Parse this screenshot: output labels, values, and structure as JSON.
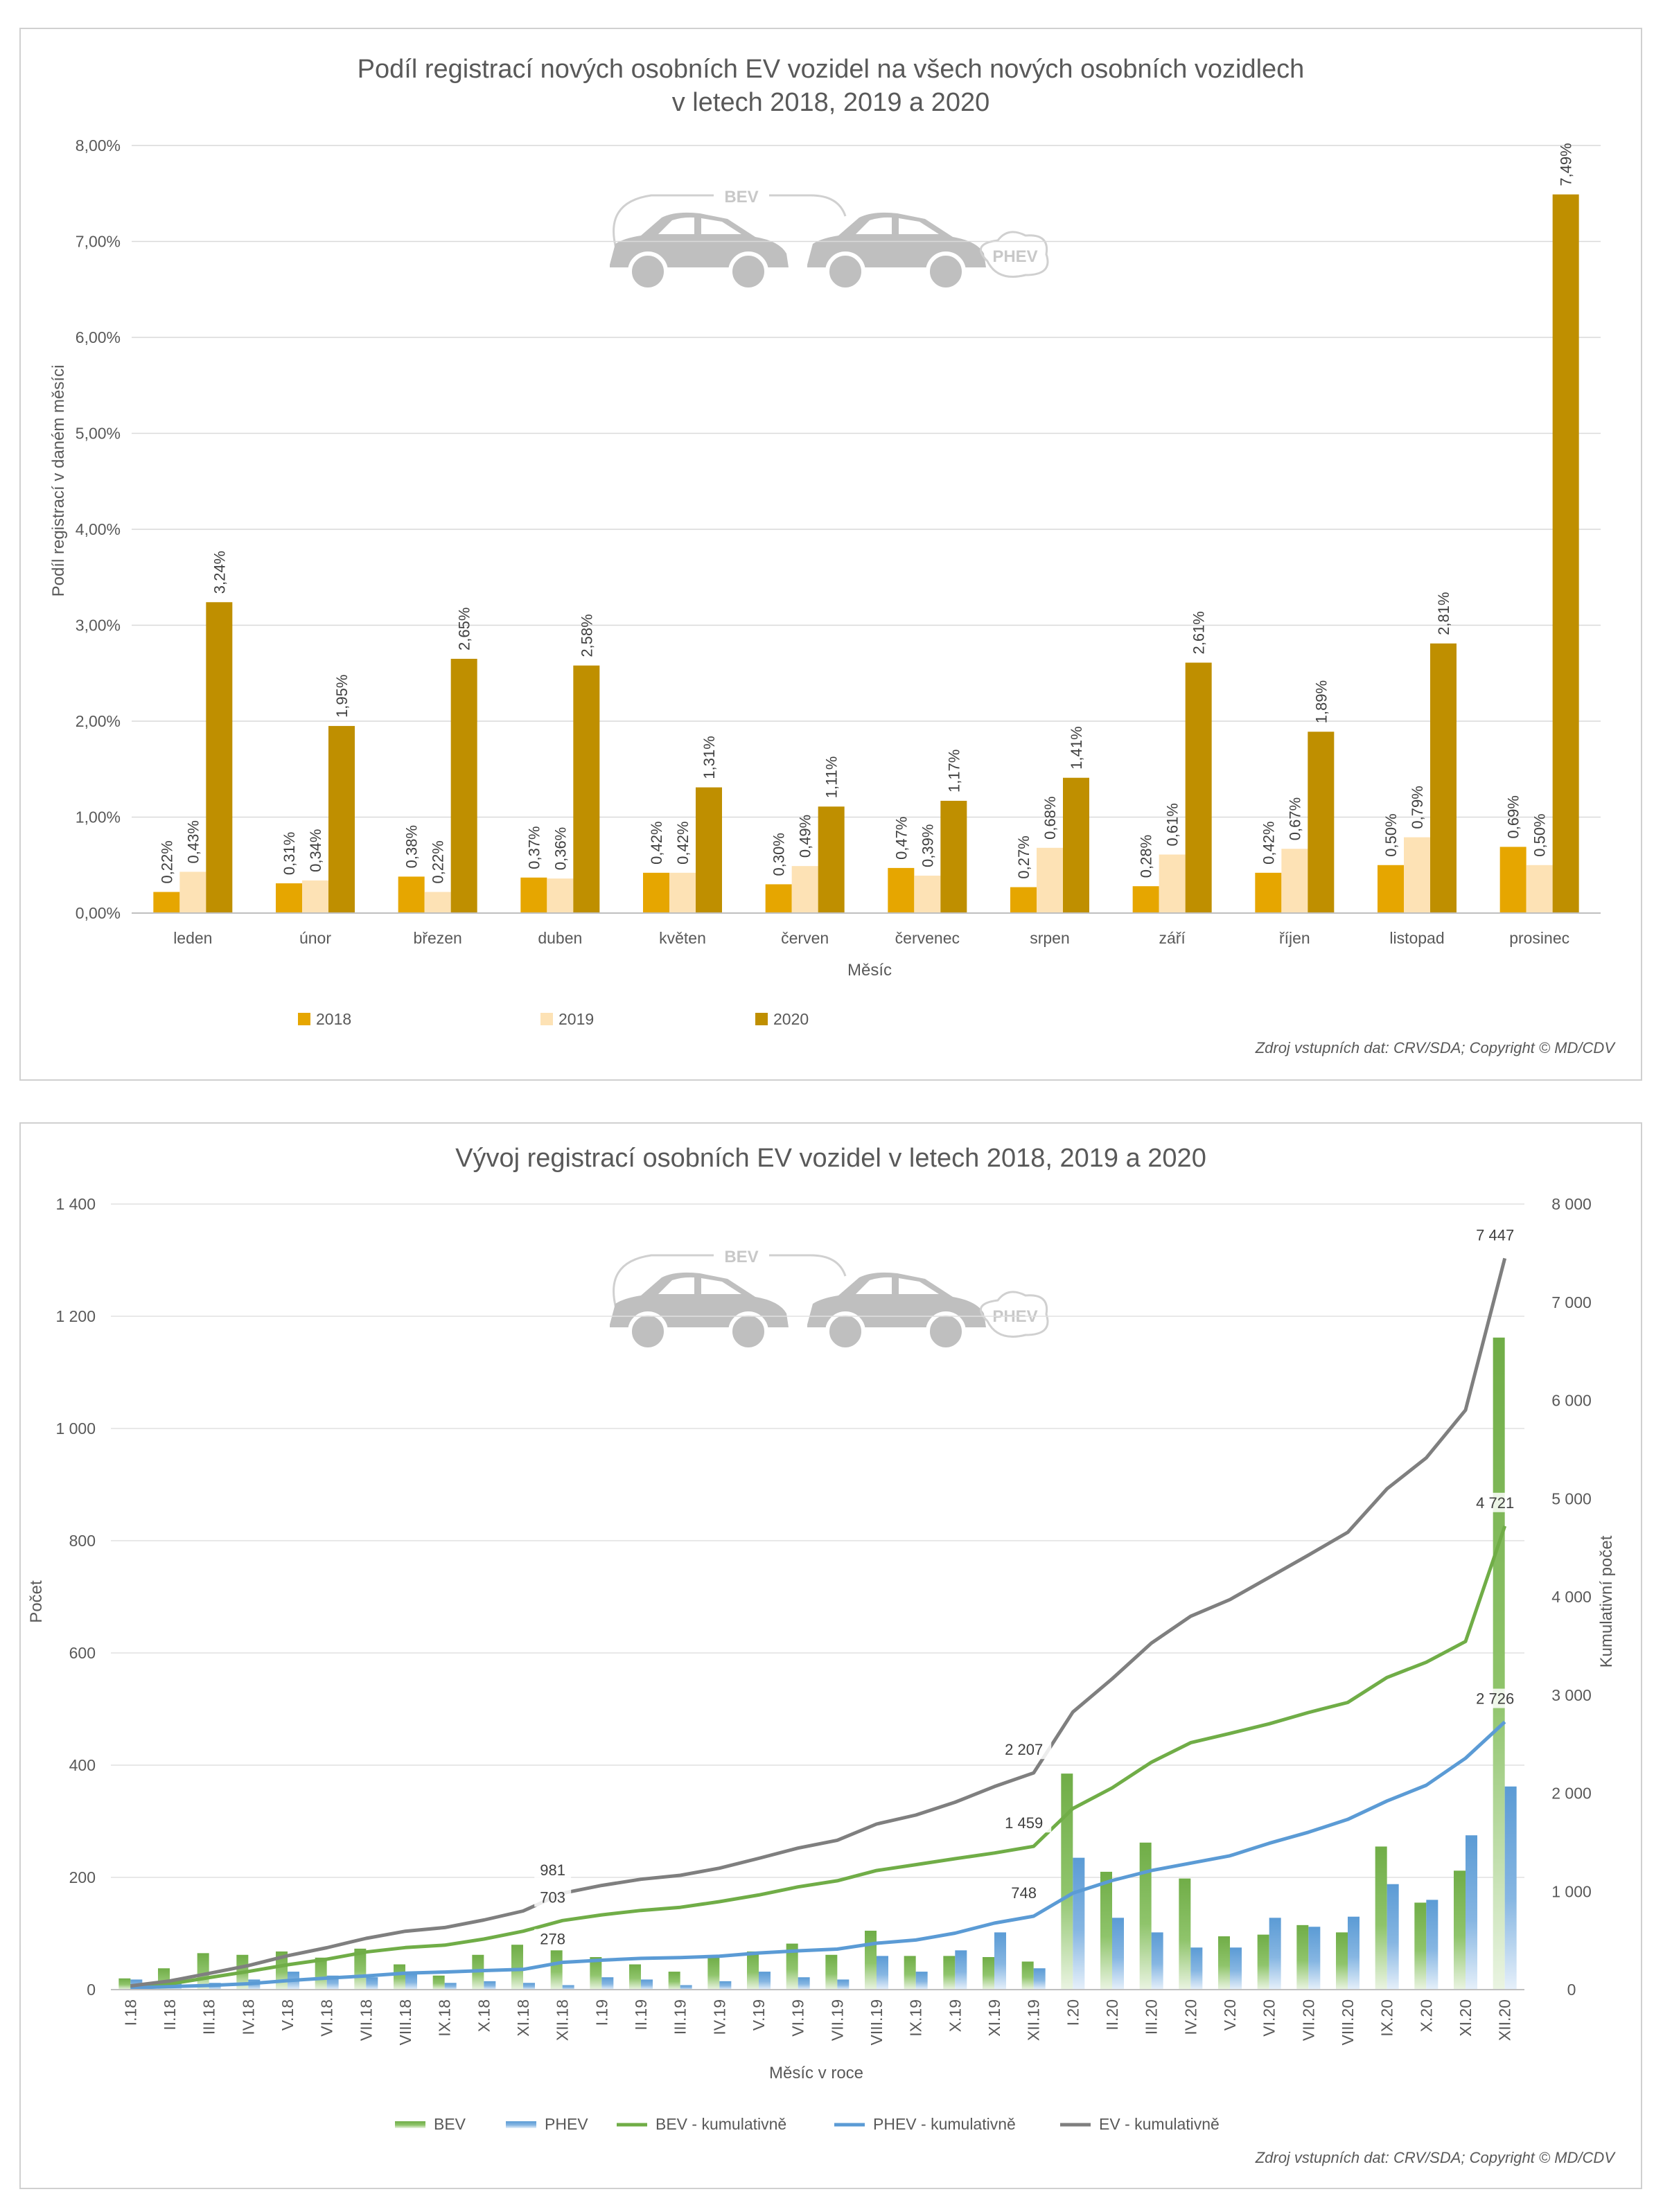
{
  "chart_data": [
    {
      "type": "bar",
      "title": "Podíl registrací nových osobních EV vozidel na všech nových osobních vozidlech",
      "title_line2": "v letech 2018, 2019 a 2020",
      "xlabel": "Měsíc",
      "ylabel": "Podíl registrací v daném měsíci",
      "ylim": [
        0,
        8
      ],
      "yticks": [
        "0,00%",
        "1,00%",
        "2,00%",
        "3,00%",
        "4,00%",
        "5,00%",
        "6,00%",
        "7,00%",
        "8,00%"
      ],
      "categories": [
        "leden",
        "únor",
        "březen",
        "duben",
        "květen",
        "červen",
        "červenec",
        "srpen",
        "září",
        "říjen",
        "listopad",
        "prosinec"
      ],
      "series": [
        {
          "name": "2018",
          "color": "#e6a600",
          "values": [
            0.22,
            0.31,
            0.38,
            0.37,
            0.42,
            0.3,
            0.47,
            0.27,
            0.28,
            0.42,
            0.5,
            0.69
          ],
          "labels": [
            "0,22%",
            "0,31%",
            "0,38%",
            "0,37%",
            "0,42%",
            "0,30%",
            "0,47%",
            "0,27%",
            "0,28%",
            "0,42%",
            "0,50%",
            "0,69%"
          ]
        },
        {
          "name": "2019",
          "color": "#fde2b5",
          "values": [
            0.43,
            0.34,
            0.22,
            0.36,
            0.42,
            0.49,
            0.39,
            0.68,
            0.61,
            0.67,
            0.79,
            0.5
          ],
          "labels": [
            "0,43%",
            "0,34%",
            "0,22%",
            "0,36%",
            "0,42%",
            "0,49%",
            "0,39%",
            "0,68%",
            "0,61%",
            "0,67%",
            "0,79%",
            "0,50%"
          ]
        },
        {
          "name": "2020",
          "color": "#bf8f00",
          "values": [
            3.24,
            1.95,
            2.65,
            2.58,
            1.31,
            1.11,
            1.17,
            1.41,
            2.61,
            1.89,
            2.81,
            7.49
          ],
          "labels": [
            "3,24%",
            "1,95%",
            "2,65%",
            "2,58%",
            "1,31%",
            "1,11%",
            "1,17%",
            "1,41%",
            "2,61%",
            "1,89%",
            "2,81%",
            "7,49%"
          ]
        }
      ],
      "source": "Zdroj vstupních dat: CRV/SDA; Copyright © MD/CDV",
      "icon_labels": {
        "bev": "BEV",
        "phev": "PHEV"
      }
    },
    {
      "type": "bar+line",
      "title": "Vývoj registrací osobních EV vozidel v letech 2018, 2019 a 2020",
      "xlabel": "Měsíc v roce",
      "ylabel": "Počet",
      "y2label": "Kumulativní počet",
      "ylim": [
        0,
        1400
      ],
      "y2lim": [
        0,
        8000
      ],
      "yticks": [
        "0",
        "200",
        "400",
        "600",
        "800",
        "1 000",
        "1 200",
        "1 400"
      ],
      "y2ticks": [
        "0",
        "1 000",
        "2 000",
        "3 000",
        "4 000",
        "5 000",
        "6 000",
        "7 000",
        "8 000"
      ],
      "categories": [
        "I.18",
        "II.18",
        "III.18",
        "IV.18",
        "V.18",
        "VI.18",
        "VII.18",
        "VIII.18",
        "IX.18",
        "X.18",
        "XI.18",
        "XII.18",
        "I.19",
        "II.19",
        "III.19",
        "IV.19",
        "V.19",
        "VI.19",
        "VII.19",
        "VIII.19",
        "IX.19",
        "X.19",
        "XI.19",
        "XII.19",
        "I.20",
        "II.20",
        "III.20",
        "IV.20",
        "V.20",
        "VI.20",
        "VII.20",
        "VIII.20",
        "IX.20",
        "X.20",
        "XI.20",
        "XII.20"
      ],
      "bars": [
        {
          "name": "BEV",
          "color": "#70ad47",
          "values": [
            20,
            38,
            65,
            62,
            68,
            57,
            73,
            45,
            25,
            62,
            80,
            70,
            58,
            45,
            32,
            58,
            68,
            82,
            62,
            105,
            60,
            60,
            58,
            50,
            385,
            210,
            262,
            198,
            95,
            98,
            115,
            102,
            255,
            155,
            212,
            1162
          ]
        },
        {
          "name": "PHEV",
          "color": "#5b9bd5",
          "values": [
            18,
            12,
            12,
            18,
            32,
            25,
            22,
            28,
            12,
            15,
            12,
            8,
            22,
            18,
            8,
            15,
            32,
            22,
            18,
            60,
            32,
            70,
            102,
            38,
            235,
            128,
            102,
            75,
            75,
            128,
            112,
            130,
            188,
            160,
            275,
            362
          ]
        }
      ],
      "lines": [
        {
          "name": "BEV - kumulativně",
          "color": "#70ad47",
          "axis": "y2",
          "values": [
            20,
            58,
            123,
            185,
            253,
            310,
            383,
            428,
            453,
            515,
            595,
            703,
            761,
            806,
            838,
            896,
            964,
            1046,
            1108,
            1213,
            1273,
            1333,
            1391,
            1459,
            1844,
            2054,
            2316,
            2514,
            2609,
            2707,
            2822,
            2924,
            3179,
            3334,
            3546,
            4721
          ]
        },
        {
          "name": "PHEV - kumulativně",
          "color": "#5b9bd5",
          "axis": "y2",
          "values": [
            18,
            30,
            42,
            60,
            92,
            117,
            139,
            167,
            179,
            194,
            206,
            278,
            300,
            318,
            326,
            341,
            373,
            395,
            413,
            473,
            505,
            575,
            677,
            748,
            983,
            1111,
            1213,
            1288,
            1363,
            1491,
            1603,
            1733,
            1921,
            2081,
            2356,
            2726
          ]
        },
        {
          "name": "EV - kumulativně",
          "color": "#7f7f7f",
          "axis": "y2",
          "values": [
            38,
            88,
            165,
            245,
            345,
            427,
            522,
            595,
            632,
            709,
            801,
            981,
            1061,
            1124,
            1164,
            1237,
            1337,
            1441,
            1521,
            1686,
            1778,
            1908,
            2068,
            2207,
            2827,
            3165,
            3529,
            3802,
            3972,
            4198,
            4425,
            4657,
            5100,
            5415,
            5902,
            7447
          ]
        }
      ],
      "annotations": [
        {
          "series": "EV - kumulativně",
          "index": 11,
          "label": "981"
        },
        {
          "series": "BEV - kumulativně",
          "index": 11,
          "label": "703"
        },
        {
          "series": "PHEV - kumulativně",
          "index": 11,
          "label": "278"
        },
        {
          "series": "EV - kumulativně",
          "index": 23,
          "label": "2 207"
        },
        {
          "series": "BEV - kumulativně",
          "index": 23,
          "label": "1 459"
        },
        {
          "series": "PHEV - kumulativně",
          "index": 23,
          "label": "748"
        },
        {
          "series": "EV - kumulativně",
          "index": 35,
          "label": "7 447"
        },
        {
          "series": "BEV - kumulativně",
          "index": 35,
          "label": "4 721"
        },
        {
          "series": "PHEV - kumulativně",
          "index": 35,
          "label": "2 726"
        }
      ],
      "source": "Zdroj vstupních dat: CRV/SDA; Copyright © MD/CDV",
      "icon_labels": {
        "bev": "BEV",
        "phev": "PHEV"
      }
    }
  ]
}
